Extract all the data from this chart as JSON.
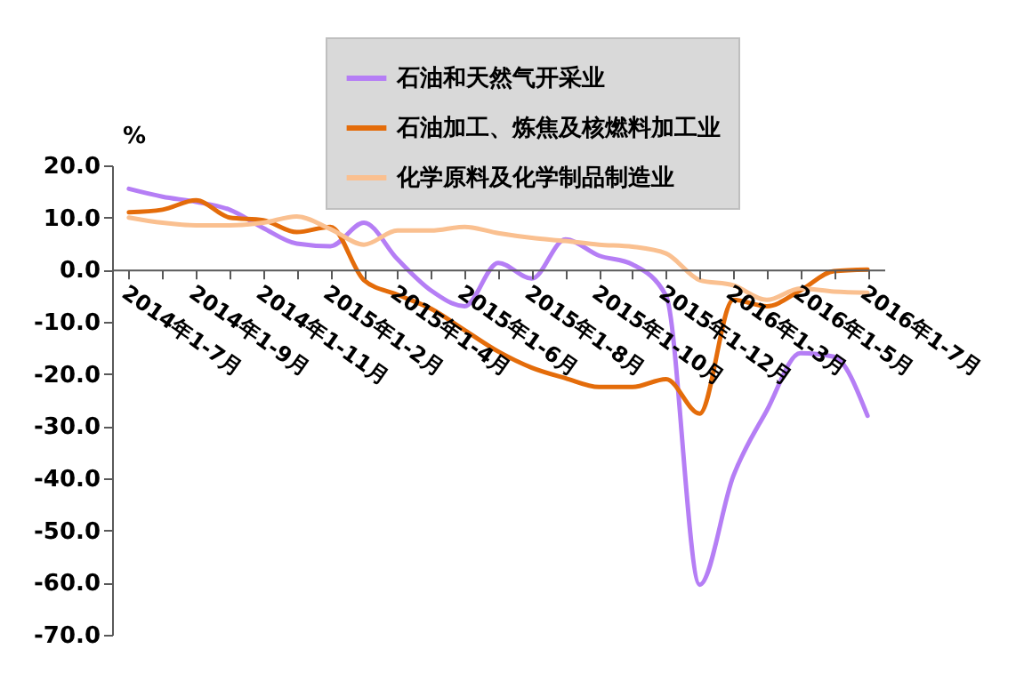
{
  "chart_data": {
    "type": "line",
    "ylabel": "%",
    "categories": [
      "2014年1-7月",
      null,
      "2014年1-9月",
      null,
      "2014年1-11月",
      null,
      "2015年1-2月",
      null,
      "2015年1-4月",
      null,
      "2015年1-6月",
      null,
      "2015年1-8月",
      null,
      "2015年1-10月",
      null,
      "2015年1-12月",
      null,
      "2016年1-3月",
      null,
      "2016年1-5月",
      null,
      "2016年1-7月"
    ],
    "series": [
      {
        "name": "石油和天然气开采业",
        "color": "#b57ef5",
        "values": [
          15.5,
          14,
          13,
          11.5,
          8,
          5,
          4.5,
          9,
          2,
          -4,
          -7,
          1.3,
          -1.7,
          5.8,
          2.7,
          1,
          -5,
          -60.4,
          -39.6,
          -27,
          -16,
          -16.7,
          -28
        ]
      },
      {
        "name": "石油加工、炼焦及核燃料加工业",
        "color": "#e46c0a",
        "values": [
          11,
          11.5,
          13.3,
          10,
          9.5,
          7.2,
          8.2,
          -2,
          -4.8,
          -7.5,
          -11.6,
          -15.7,
          -18.8,
          -20.8,
          -22.5,
          -22.5,
          -21,
          -27.6,
          -5.8,
          -7,
          -4,
          -0.3,
          0
        ]
      },
      {
        "name": "化学原料及化学制品制造业",
        "color": "#fac090",
        "values": [
          10,
          9,
          8.5,
          8.5,
          9,
          10.2,
          7.8,
          4.8,
          7.5,
          7.5,
          8.2,
          7,
          6.1,
          5.5,
          4.8,
          4.4,
          3.1,
          -2,
          -3,
          -5.8,
          -3.6,
          -4.2,
          -4.4
        ]
      }
    ],
    "ylim": [
      -70,
      20
    ],
    "yticks": [
      {
        "value": 20,
        "label": "20.0"
      },
      {
        "value": 10,
        "label": "10.0"
      },
      {
        "value": 0,
        "label": "0.0"
      },
      {
        "value": -10,
        "label": "-10.0"
      },
      {
        "value": -20,
        "label": "-20.0"
      },
      {
        "value": -30,
        "label": "-30.0"
      },
      {
        "value": -40,
        "label": "-40.0"
      },
      {
        "value": -50,
        "label": "-50.0"
      },
      {
        "value": -60,
        "label": "-60.0"
      },
      {
        "value": -70,
        "label": "-70.0"
      }
    ],
    "grid": false,
    "legend": "top",
    "marker": "none",
    "line_style": "solid"
  }
}
